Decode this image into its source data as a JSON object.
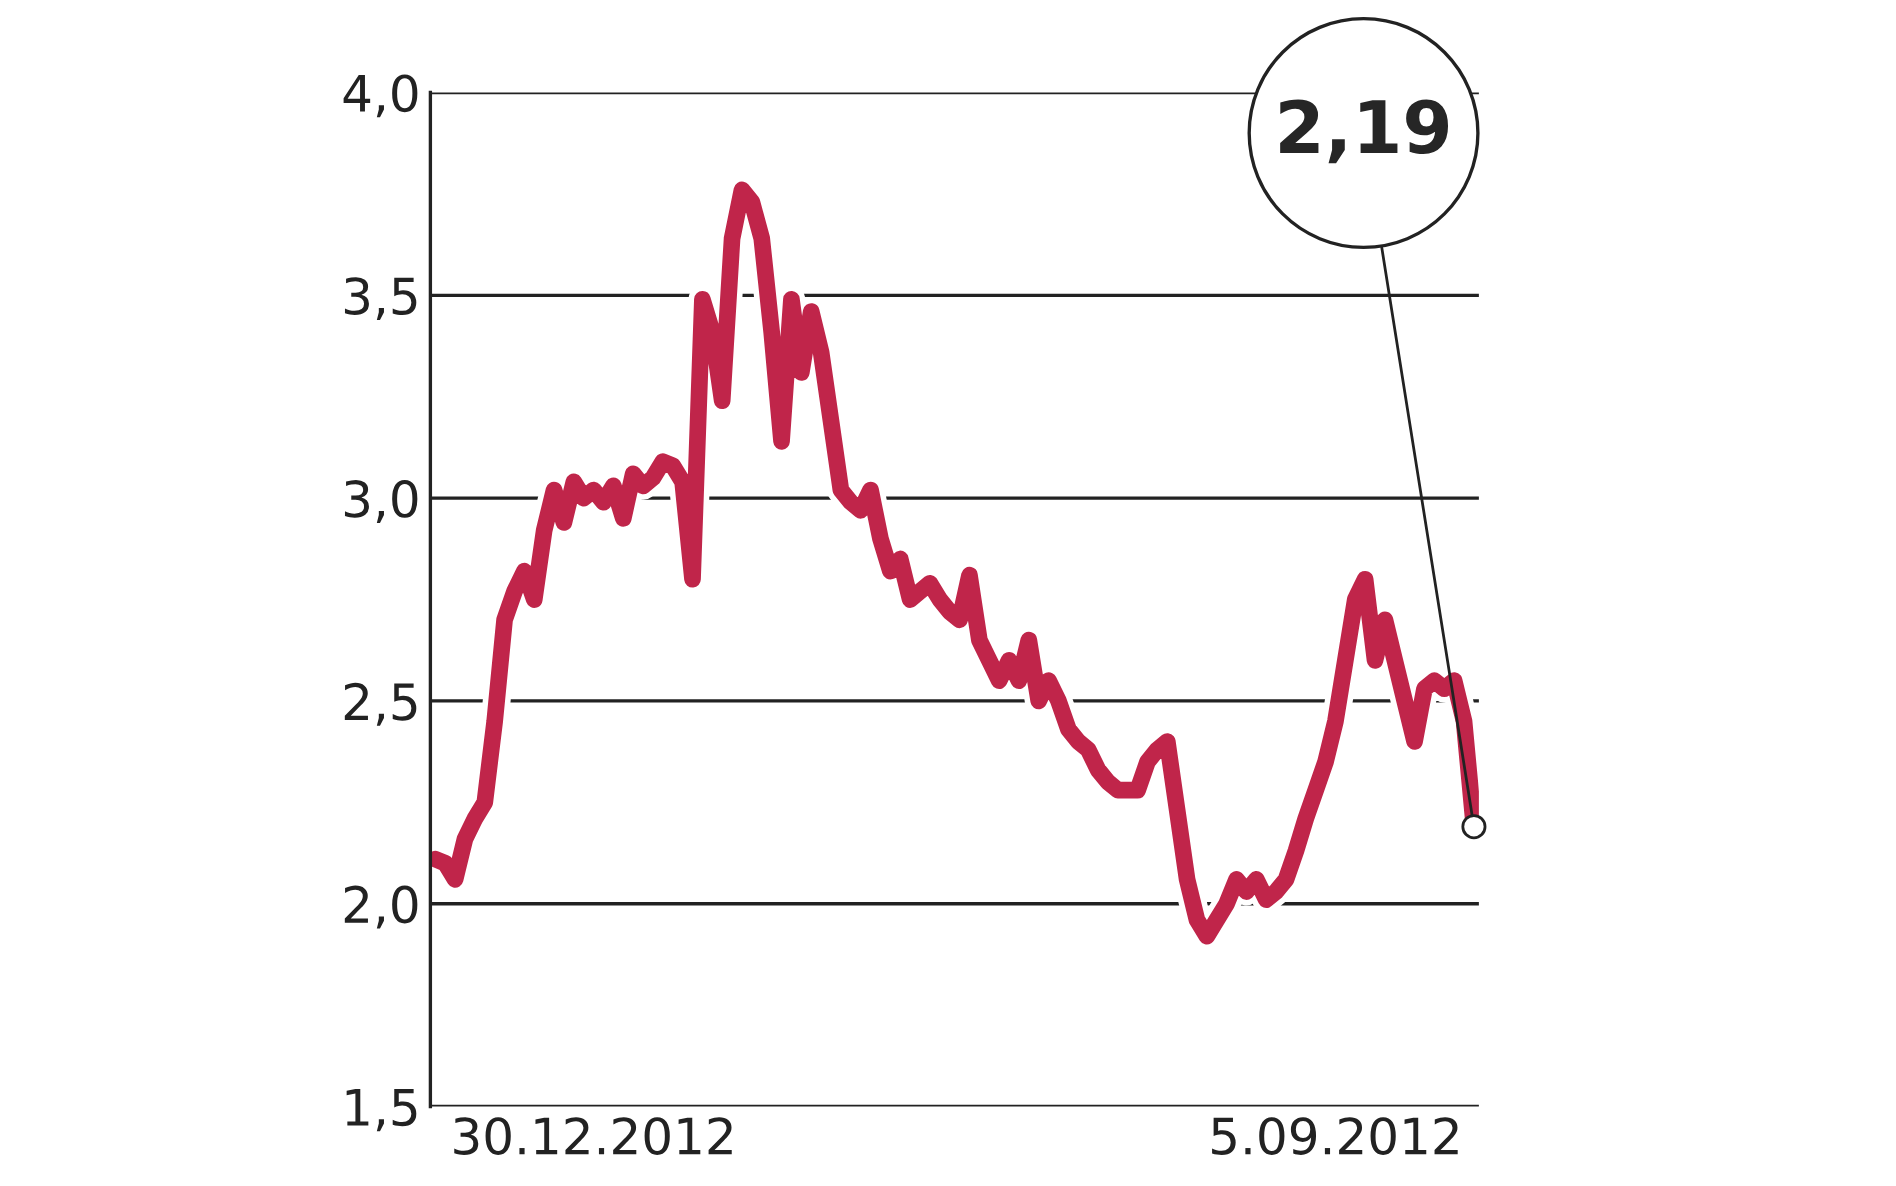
{
  "chart_data": {
    "type": "line",
    "categories": [
      null,
      null,
      null,
      null,
      null,
      null,
      null,
      null,
      null,
      null,
      null,
      null,
      null,
      null,
      null,
      null,
      "30.12.2012",
      null,
      null,
      null,
      null,
      null,
      null,
      null,
      null,
      null,
      null,
      null,
      null,
      null,
      null,
      null,
      null,
      null,
      null,
      null,
      null,
      null,
      null,
      null,
      null,
      null,
      null,
      null,
      null,
      null,
      null,
      null,
      null,
      null,
      null,
      null,
      null,
      null,
      null,
      null,
      null,
      null,
      null,
      null,
      null,
      null,
      null,
      null,
      null,
      null,
      null,
      null,
      null,
      null,
      null,
      null,
      null,
      null,
      null,
      null,
      null,
      null,
      null,
      null,
      null,
      null,
      null,
      null,
      null,
      null,
      null,
      null,
      null,
      null,
      null,
      "5.09.2012",
      null,
      null,
      null,
      null,
      null,
      null,
      null,
      null,
      null,
      null,
      null,
      null,
      null,
      null
    ],
    "series": [
      {
        "color": "#c0254a",
        "values": [
          2.11,
          2.1,
          2.06,
          2.16,
          2.21,
          2.25,
          2.45,
          2.7,
          2.77,
          2.82,
          2.75,
          2.92,
          3.02,
          2.94,
          3.04,
          3.0,
          3.02,
          2.99,
          3.03,
          2.95,
          3.06,
          3.03,
          3.05,
          3.09,
          3.08,
          3.04,
          2.8,
          3.49,
          3.41,
          3.24,
          3.64,
          3.76,
          3.73,
          3.64,
          3.41,
          3.14,
          3.49,
          3.31,
          3.46,
          3.36,
          3.19,
          3.02,
          2.99,
          2.97,
          3.02,
          2.9,
          2.82,
          2.85,
          2.75,
          2.77,
          2.79,
          2.75,
          2.72,
          2.7,
          2.81,
          2.65,
          2.6,
          2.55,
          2.6,
          2.55,
          2.65,
          2.5,
          2.55,
          2.5,
          2.43,
          2.4,
          2.38,
          2.33,
          2.3,
          2.28,
          2.28,
          2.28,
          2.35,
          2.38,
          2.4,
          2.23,
          2.06,
          1.96,
          1.92,
          1.96,
          2.0,
          2.06,
          2.03,
          2.06,
          2.01,
          2.03,
          2.06,
          2.13,
          2.21,
          2.28,
          2.35,
          2.45,
          2.6,
          2.75,
          2.8,
          2.6,
          2.7,
          2.6,
          2.5,
          2.4,
          2.53,
          2.55,
          2.53,
          2.55,
          2.45,
          2.19
        ]
      }
    ],
    "ylim": [
      1.5,
      4.0
    ],
    "yticks": [
      {
        "value": 1.5,
        "label": "1,5"
      },
      {
        "value": 2.0,
        "label": "2,0"
      },
      {
        "value": 2.5,
        "label": "2,5"
      },
      {
        "value": 3.0,
        "label": "3,0"
      },
      {
        "value": 3.5,
        "label": "3,5"
      },
      {
        "value": 4.0,
        "label": "4,0"
      }
    ],
    "grid": "y",
    "annotations": [
      "2,19"
    ]
  }
}
